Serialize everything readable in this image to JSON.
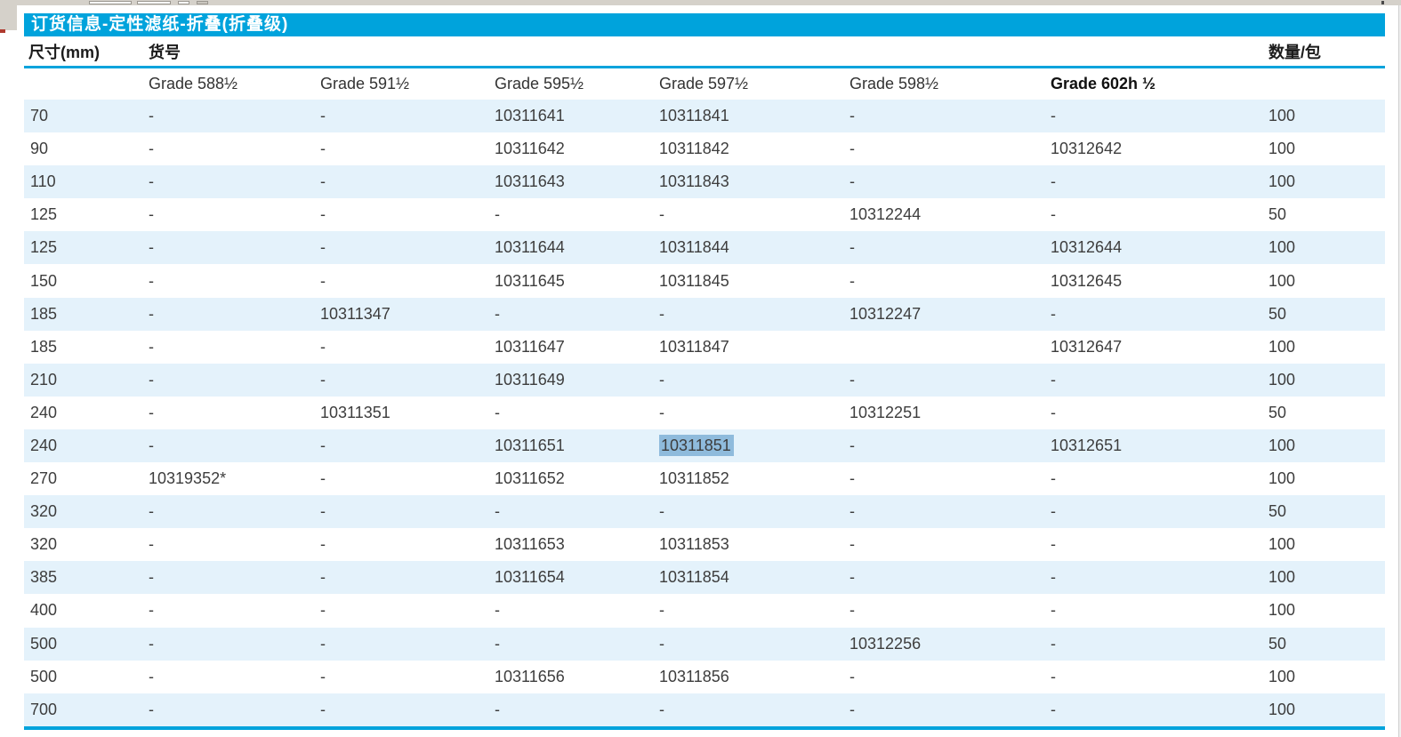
{
  "header": {
    "title": "订货信息-定性滤纸-折叠(折叠级)"
  },
  "table": {
    "columns": {
      "size_label": "尺寸(mm)",
      "catalog_label": "货号",
      "qty_label": "数量/包"
    },
    "grades": [
      "Grade 588½",
      "Grade 591½",
      "Grade 595½",
      "Grade 597½",
      "Grade 598½",
      "Grade 602h ½"
    ],
    "rows": [
      {
        "cells": [
          "70",
          "-",
          "-",
          "10311641",
          "10311841",
          "-",
          "-",
          "100"
        ],
        "highlight_cell": null
      },
      {
        "cells": [
          "90",
          "-",
          "-",
          "10311642",
          "10311842",
          "-",
          "10312642",
          "100"
        ],
        "highlight_cell": null
      },
      {
        "cells": [
          "110",
          "-",
          "-",
          "10311643",
          "10311843",
          "-",
          "-",
          "100"
        ],
        "highlight_cell": null
      },
      {
        "cells": [
          "125",
          "-",
          "-",
          "-",
          "-",
          "10312244",
          "-",
          "50"
        ],
        "highlight_cell": null
      },
      {
        "cells": [
          "125",
          "-",
          "-",
          "10311644",
          "10311844",
          "-",
          "10312644",
          "100"
        ],
        "highlight_cell": null
      },
      {
        "cells": [
          "150",
          "-",
          "-",
          "10311645",
          "10311845",
          "-",
          "10312645",
          "100"
        ],
        "highlight_cell": null
      },
      {
        "cells": [
          "185",
          "-",
          "10311347",
          "-",
          "-",
          "10312247",
          "-",
          "50"
        ],
        "highlight_cell": null
      },
      {
        "cells": [
          "185",
          "-",
          "-",
          "10311647",
          "10311847",
          "",
          "10312647",
          "100"
        ],
        "highlight_cell": null
      },
      {
        "cells": [
          "210",
          "-",
          "-",
          "10311649",
          "-",
          "-",
          "-",
          "100"
        ],
        "highlight_cell": null
      },
      {
        "cells": [
          "240",
          "-",
          "10311351",
          "-",
          "-",
          "10312251",
          "-",
          "50"
        ],
        "highlight_cell": null
      },
      {
        "cells": [
          "240",
          "-",
          "-",
          "10311651",
          "10311851",
          "-",
          "10312651",
          "100"
        ],
        "highlight_cell": 4
      },
      {
        "cells": [
          "270",
          "10319352*",
          "-",
          "10311652",
          "10311852",
          "-",
          "-",
          "100"
        ],
        "highlight_cell": null
      },
      {
        "cells": [
          "320",
          "-",
          "-",
          "-",
          "-",
          "-",
          "-",
          "50"
        ],
        "highlight_cell": null
      },
      {
        "cells": [
          "320",
          "-",
          "-",
          "10311653",
          "10311853",
          "-",
          "-",
          "100"
        ],
        "highlight_cell": null
      },
      {
        "cells": [
          "385",
          "-",
          "-",
          "10311654",
          "10311854",
          "-",
          "-",
          "100"
        ],
        "highlight_cell": null
      },
      {
        "cells": [
          "400",
          "-",
          "-",
          "-",
          "-",
          "-",
          "-",
          "100"
        ],
        "highlight_cell": null
      },
      {
        "cells": [
          "500",
          "-",
          "-",
          "-",
          "-",
          "10312256",
          "-",
          "50"
        ],
        "highlight_cell": null
      },
      {
        "cells": [
          "500",
          "-",
          "-",
          "10311656",
          "10311856",
          "-",
          "-",
          "100"
        ],
        "highlight_cell": null
      },
      {
        "cells": [
          "700",
          "-",
          "-",
          "-",
          "-",
          "-",
          "-",
          "100"
        ],
        "highlight_cell": null
      }
    ]
  },
  "colors": {
    "accent_cyan": "#00a3dc",
    "row_alt_blue": "#e4f2fb",
    "selection_blue": "#8fbbdc"
  }
}
